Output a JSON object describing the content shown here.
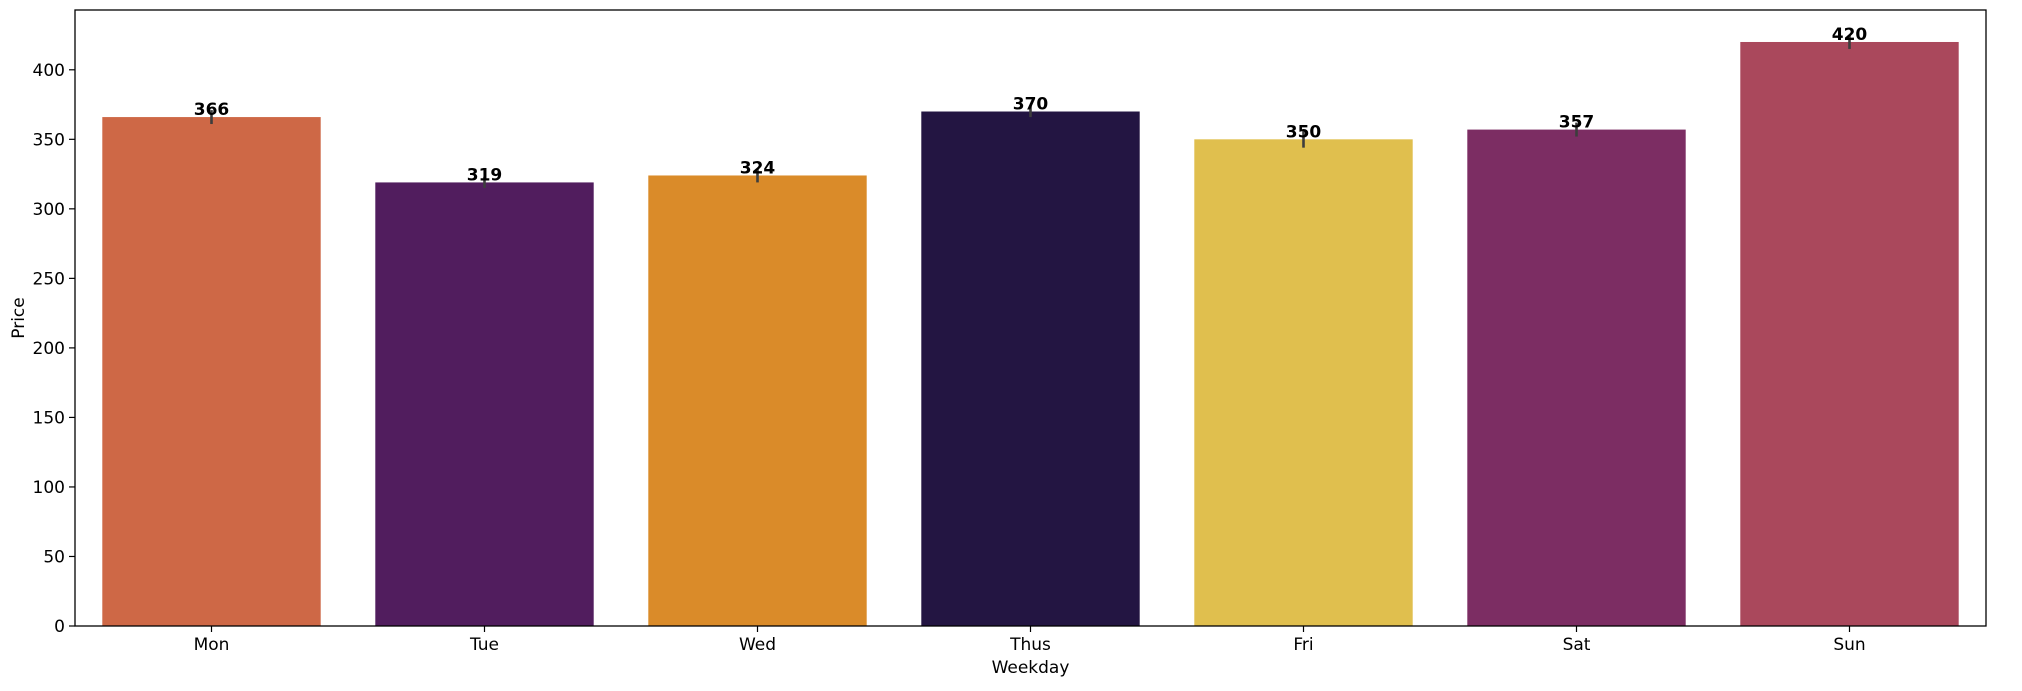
{
  "chart_data": {
    "type": "bar",
    "title": "",
    "xlabel": "Weekday",
    "ylabel": "Price",
    "categories": [
      "Mon",
      "Tue",
      "Wed",
      "Thus",
      "Fri",
      "Sat",
      "Sun"
    ],
    "values": [
      366,
      319,
      324,
      370,
      350,
      357,
      420
    ],
    "value_labels": [
      "366",
      "319",
      "324",
      "370",
      "350",
      "357",
      "420"
    ],
    "error_bars": [
      [
        361,
        371
      ],
      [
        315,
        323
      ],
      [
        319,
        329
      ],
      [
        366,
        374
      ],
      [
        344,
        356
      ],
      [
        352,
        362
      ],
      [
        415,
        425
      ]
    ],
    "colors": [
      "#CE6846",
      "#511D5E",
      "#DA8B29",
      "#231542",
      "#E0BF4E",
      "#7C2D63",
      "#AA485C"
    ],
    "ylim": [
      0,
      443
    ],
    "yticks": [
      0,
      50,
      100,
      150,
      200,
      250,
      300,
      350,
      400
    ],
    "ytick_labels": [
      "0",
      "50",
      "100",
      "150",
      "200",
      "250",
      "300",
      "350",
      "400"
    ],
    "grid": false,
    "legend": "none"
  }
}
